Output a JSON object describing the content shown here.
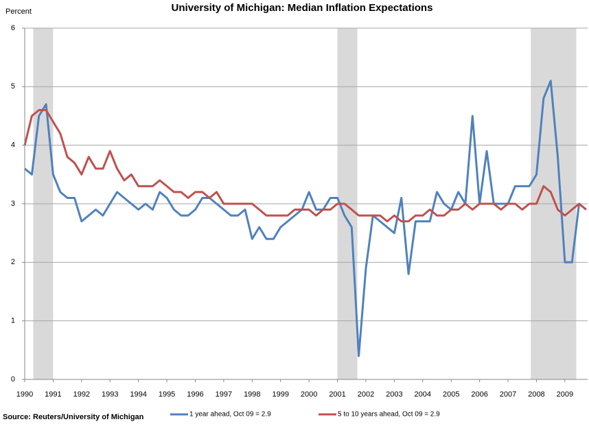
{
  "chart_data": {
    "type": "line",
    "title": "University of Michigan: Median Inflation Expectations",
    "y_label": "Percent",
    "source": "Source: Reuters/University of Michigan",
    "x": [
      1990,
      1990.25,
      1990.5,
      1990.75,
      1991,
      1991.25,
      1991.5,
      1991.75,
      1992,
      1992.25,
      1992.5,
      1992.75,
      1993,
      1993.25,
      1993.5,
      1993.75,
      1994,
      1994.25,
      1994.5,
      1994.75,
      1995,
      1995.25,
      1995.5,
      1995.75,
      1996,
      1996.25,
      1996.5,
      1996.75,
      1997,
      1997.25,
      1997.5,
      1997.75,
      1998,
      1998.25,
      1998.5,
      1998.75,
      1999,
      1999.25,
      1999.5,
      1999.75,
      2000,
      2000.25,
      2000.5,
      2000.75,
      2001,
      2001.25,
      2001.5,
      2001.75,
      2002,
      2002.25,
      2002.5,
      2002.75,
      2003,
      2003.25,
      2003.5,
      2003.75,
      2004,
      2004.25,
      2004.5,
      2004.75,
      2005,
      2005.25,
      2005.5,
      2005.75,
      2006,
      2006.25,
      2006.5,
      2006.75,
      2007,
      2007.25,
      2007.5,
      2007.75,
      2008,
      2008.25,
      2008.5,
      2008.75,
      2009,
      2009.25,
      2009.5,
      2009.75
    ],
    "series": [
      {
        "name": "1 year ahead, Oct 09 = 2.9",
        "color": "#4f81bd",
        "values": [
          3.6,
          3.5,
          4.5,
          4.7,
          3.5,
          3.2,
          3.1,
          3.1,
          2.7,
          2.8,
          2.9,
          2.8,
          3.0,
          3.2,
          3.1,
          3.0,
          2.9,
          3.0,
          2.9,
          3.2,
          3.1,
          2.9,
          2.8,
          2.8,
          2.9,
          3.1,
          3.1,
          3.0,
          2.9,
          2.8,
          2.8,
          2.9,
          2.4,
          2.6,
          2.4,
          2.4,
          2.6,
          2.7,
          2.8,
          2.9,
          3.2,
          2.9,
          2.9,
          3.1,
          3.1,
          2.8,
          2.6,
          0.4,
          1.9,
          2.8,
          2.7,
          2.6,
          2.5,
          3.1,
          1.8,
          2.7,
          2.7,
          2.7,
          3.2,
          3.0,
          2.9,
          3.2,
          3.0,
          4.5,
          3.0,
          3.9,
          3.0,
          3.0,
          3.0,
          3.3,
          3.3,
          3.3,
          3.5,
          4.8,
          5.1,
          3.8,
          2.0,
          2.0,
          3.0,
          2.9
        ]
      },
      {
        "name": "5 to 10 years ahead, Oct 09 = 2.9",
        "color": "#c0504d",
        "values": [
          4.0,
          4.5,
          4.6,
          4.6,
          4.4,
          4.2,
          3.8,
          3.7,
          3.5,
          3.8,
          3.6,
          3.6,
          3.9,
          3.6,
          3.4,
          3.5,
          3.3,
          3.3,
          3.3,
          3.4,
          3.3,
          3.2,
          3.2,
          3.1,
          3.2,
          3.2,
          3.1,
          3.2,
          3.0,
          3.0,
          3.0,
          3.0,
          3.0,
          2.9,
          2.8,
          2.8,
          2.8,
          2.8,
          2.9,
          2.9,
          2.9,
          2.8,
          2.9,
          2.9,
          3.0,
          3.0,
          2.9,
          2.8,
          2.8,
          2.8,
          2.8,
          2.7,
          2.8,
          2.7,
          2.7,
          2.8,
          2.8,
          2.9,
          2.8,
          2.8,
          2.9,
          2.9,
          3.0,
          2.9,
          3.0,
          3.0,
          3.0,
          2.9,
          3.0,
          3.0,
          2.9,
          3.0,
          3.0,
          3.3,
          3.2,
          2.9,
          2.8,
          2.9,
          3.0,
          2.9
        ]
      }
    ],
    "shading": [
      [
        1990.3,
        1991.0
      ],
      [
        2001.0,
        2001.7
      ],
      [
        2007.8,
        2009.4
      ]
    ],
    "shading_color": "#d9d9d9",
    "xlim": [
      1990,
      2009.8
    ],
    "xticks": [
      1990,
      1991,
      1992,
      1993,
      1994,
      1995,
      1996,
      1997,
      1998,
      1999,
      2000,
      2001,
      2002,
      2003,
      2004,
      2005,
      2006,
      2007,
      2008,
      2009
    ],
    "ylim": [
      0,
      6
    ],
    "yticks": [
      0,
      1,
      2,
      3,
      4,
      5,
      6
    ],
    "grid": true
  }
}
